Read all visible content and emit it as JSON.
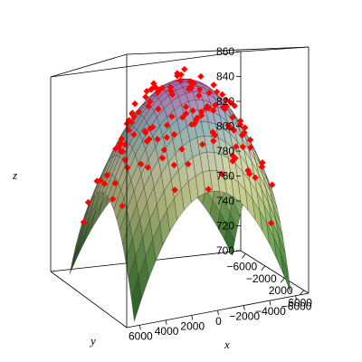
{
  "chart_data": {
    "type": "surface3d",
    "xlabel": "x",
    "ylabel": "y",
    "zlabel": "z",
    "z_ticks": [
      700,
      720,
      740,
      760,
      780,
      800,
      820,
      840,
      860
    ],
    "x_ticks": [
      6000,
      4000,
      2000,
      0,
      -2000,
      -4000,
      -6000
    ],
    "y_ticks": [
      -6000,
      -2000,
      2000,
      6000
    ],
    "x_tick_labels": [
      "6000",
      "4000",
      "2000",
      "0",
      "−2000",
      "−4000",
      "−6000"
    ],
    "y_tick_labels": [
      "−6000",
      "−2000",
      "2000",
      "6000"
    ],
    "x_range": [
      -7000,
      7000
    ],
    "y_range": [
      -7000,
      7000
    ],
    "z_range": [
      700,
      860
    ],
    "surface": {
      "shape": "downward paraboloid",
      "peak_z": 845,
      "min_z": 700,
      "mesh": true
    },
    "points": {
      "color": "#ff0000",
      "count": 130,
      "z_spread": [
        770,
        860
      ]
    },
    "colors": {
      "point": "#ff0000",
      "box": "#000000",
      "mesh_line": "#333333"
    }
  }
}
